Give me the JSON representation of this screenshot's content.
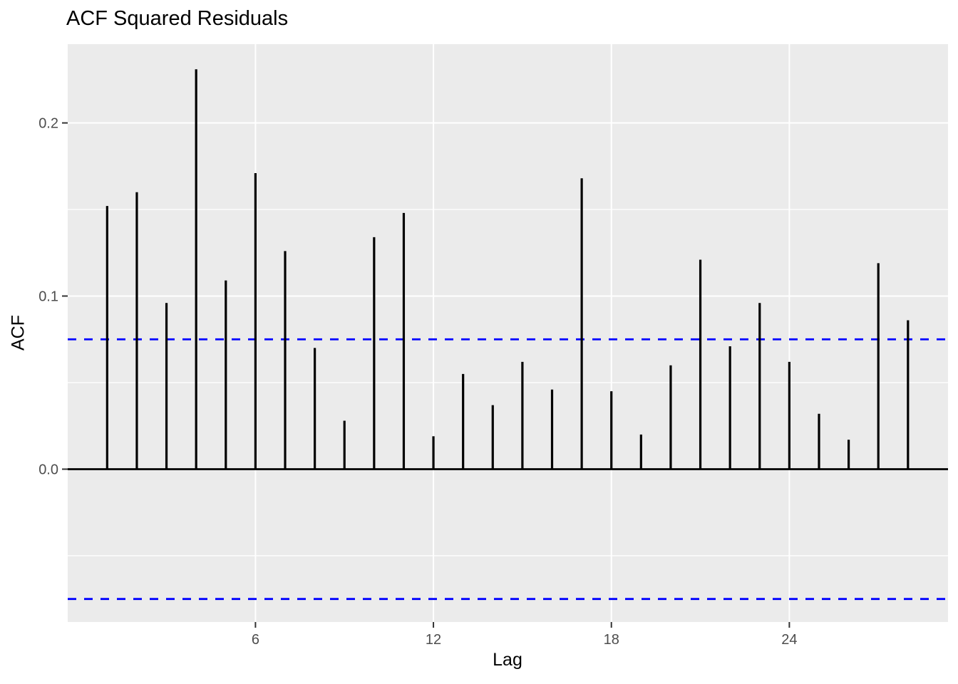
{
  "figure": {
    "kind": "ACF correlogram (ggplot2 theme_gray style)"
  },
  "chart_data": {
    "type": "bar",
    "style": "stem",
    "title": "ACF Squared Residuals",
    "xlabel": "Lag",
    "ylabel": "ACF",
    "x": [
      1,
      2,
      3,
      4,
      5,
      6,
      7,
      8,
      9,
      10,
      11,
      12,
      13,
      14,
      15,
      16,
      17,
      18,
      19,
      20,
      21,
      22,
      23,
      24,
      25,
      26,
      27,
      28
    ],
    "values": [
      0.152,
      0.16,
      0.096,
      0.231,
      0.109,
      0.171,
      0.126,
      0.07,
      0.028,
      0.134,
      0.148,
      0.019,
      0.055,
      0.037,
      0.062,
      0.046,
      0.168,
      0.045,
      0.02,
      0.06,
      0.121,
      0.071,
      0.096,
      0.062,
      0.032,
      0.017,
      0.119,
      0.086
    ],
    "confidence_bounds": {
      "upper": 0.075,
      "lower": -0.075,
      "linetype": "dashed"
    },
    "zero_line": 0.0,
    "x_ticks": {
      "values": [
        6,
        12,
        18,
        24
      ],
      "labels": [
        "6",
        "12",
        "18",
        "24"
      ]
    },
    "y_ticks": {
      "values": [
        0.0,
        0.1,
        0.2
      ],
      "labels": [
        "0.0",
        "0.1",
        "0.2"
      ]
    },
    "y_minor_gridlines": [
      -0.05,
      0.05,
      0.15
    ],
    "xlim": [
      -0.33,
      29.35
    ],
    "ylim": [
      -0.0883,
      0.2455
    ],
    "grid": "white major+minor horizontal, white major vertical",
    "legend": false
  },
  "colors": {
    "page_background": "#FFFFFF",
    "panel_background": "#EBEBEB",
    "gridline": "#FFFFFF",
    "stem": "#000000",
    "zero_line": "#000000",
    "confidence_line": "#0000FF",
    "tick_mark": "#333333",
    "tick_label": "#4D4D4D",
    "title_text": "#000000"
  }
}
